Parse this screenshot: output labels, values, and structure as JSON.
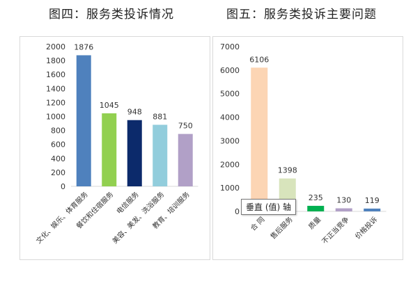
{
  "titles": {
    "left": "图四：服务类投诉情况",
    "right": "图五：服务类投诉主要问题"
  },
  "tooltip": "垂直 (值) 轴",
  "chart_data": [
    {
      "type": "bar",
      "title": "图四：服务类投诉情况",
      "categories": [
        "文化、娱乐、体育服务",
        "餐饮和住宿服务",
        "电信服务",
        "美容、美发、洗浴服务",
        "教育、培训服务"
      ],
      "values": [
        1876,
        1045,
        948,
        881,
        750
      ],
      "colors": [
        "#4f81bd",
        "#92d050",
        "#0c2a6b",
        "#92cddc",
        "#b1a0c7"
      ],
      "yticks": [
        "0",
        "200",
        "400",
        "600",
        "800",
        "1000",
        "1200",
        "1400",
        "1600",
        "1800",
        "2000"
      ],
      "ylim": [
        0,
        2000
      ]
    },
    {
      "type": "bar",
      "title": "图五：服务类投诉主要问题",
      "categories": [
        "合 同",
        "售后服务",
        "质量",
        "不正当竞争",
        "价格投诉"
      ],
      "values": [
        6106,
        1398,
        235,
        130,
        119
      ],
      "colors": [
        "#fcd5b4",
        "#d8e4bc",
        "#00b050",
        "#b1a0c7",
        "#4f81bd"
      ],
      "yticks": [
        "0",
        "1000",
        "2000",
        "3000",
        "4000",
        "5000",
        "6000",
        "7000"
      ],
      "ylim": [
        0,
        7000
      ]
    }
  ]
}
